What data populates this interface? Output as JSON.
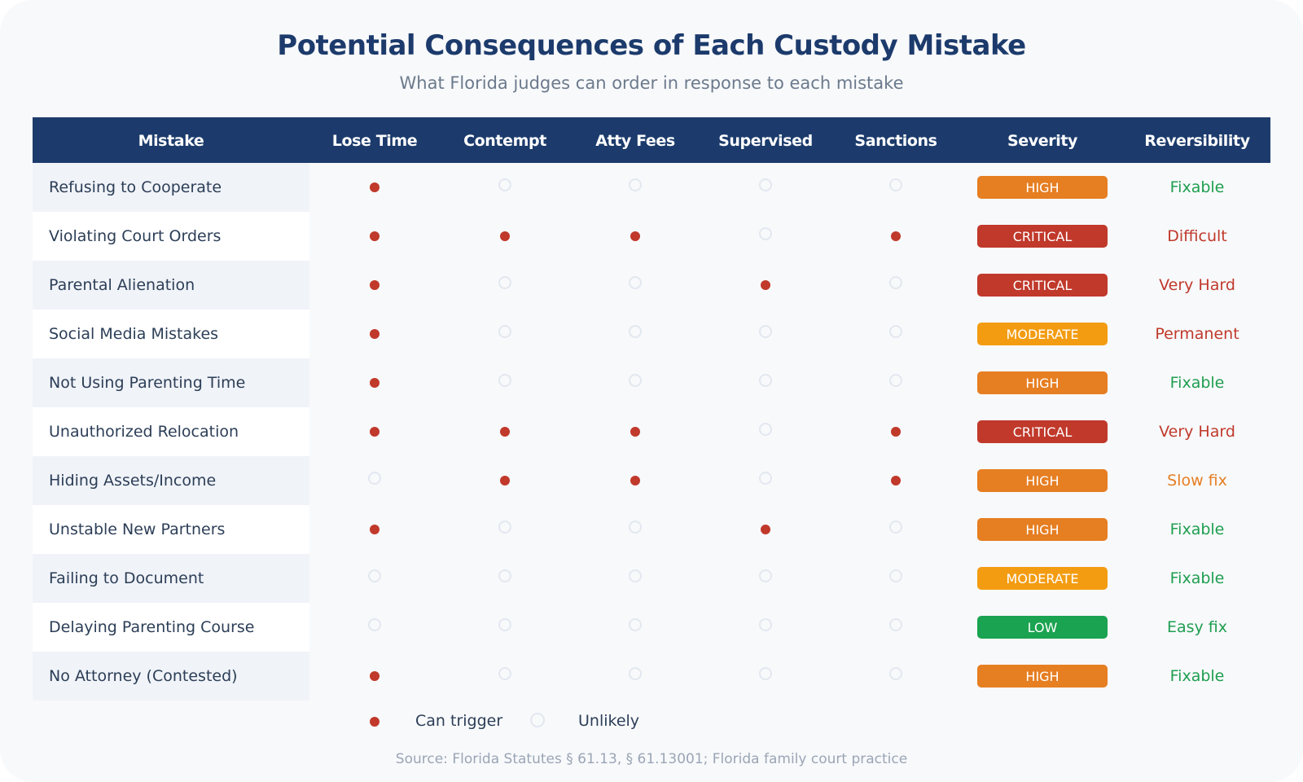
{
  "header": {
    "title": "Potential Consequences of Each Custody Mistake",
    "subtitle": "What Florida judges can order in response to each mistake"
  },
  "columns": [
    "Mistake",
    "Lose Time",
    "Contempt",
    "Atty Fees",
    "Supervised",
    "Sanctions",
    "Severity",
    "Reversibility"
  ],
  "severity_colors": {
    "CRITICAL": "#c0392b",
    "HIGH": "#e67e22",
    "MODERATE": "#f39c12",
    "LOW": "#1aa350"
  },
  "reversibility_colors": {
    "Fixable": "#1e9e50",
    "Easy fix": "#1e9e50",
    "Slow fix": "#e67e22",
    "Difficult": "#c0392b",
    "Very Hard": "#c0392b",
    "Permanent": "#c0392b"
  },
  "rows": [
    {
      "mistake": "Refusing to Cooperate",
      "flags": [
        1,
        0,
        0,
        0,
        0
      ],
      "severity": "HIGH",
      "reversibility": "Fixable"
    },
    {
      "mistake": "Violating Court Orders",
      "flags": [
        1,
        1,
        1,
        0,
        1
      ],
      "severity": "CRITICAL",
      "reversibility": "Difficult"
    },
    {
      "mistake": "Parental Alienation",
      "flags": [
        1,
        0,
        0,
        1,
        0
      ],
      "severity": "CRITICAL",
      "reversibility": "Very Hard"
    },
    {
      "mistake": "Social Media Mistakes",
      "flags": [
        1,
        0,
        0,
        0,
        0
      ],
      "severity": "MODERATE",
      "reversibility": "Permanent"
    },
    {
      "mistake": "Not Using Parenting Time",
      "flags": [
        1,
        0,
        0,
        0,
        0
      ],
      "severity": "HIGH",
      "reversibility": "Fixable"
    },
    {
      "mistake": "Unauthorized Relocation",
      "flags": [
        1,
        1,
        1,
        0,
        1
      ],
      "severity": "CRITICAL",
      "reversibility": "Very Hard"
    },
    {
      "mistake": "Hiding Assets/Income",
      "flags": [
        0,
        1,
        1,
        0,
        1
      ],
      "severity": "HIGH",
      "reversibility": "Slow fix"
    },
    {
      "mistake": "Unstable New Partners",
      "flags": [
        1,
        0,
        0,
        1,
        0
      ],
      "severity": "HIGH",
      "reversibility": "Fixable"
    },
    {
      "mistake": "Failing to Document",
      "flags": [
        0,
        0,
        0,
        0,
        0
      ],
      "severity": "MODERATE",
      "reversibility": "Fixable"
    },
    {
      "mistake": "Delaying Parenting Course",
      "flags": [
        0,
        0,
        0,
        0,
        0
      ],
      "severity": "LOW",
      "reversibility": "Easy fix"
    },
    {
      "mistake": "No Attorney (Contested)",
      "flags": [
        1,
        0,
        0,
        0,
        0
      ],
      "severity": "HIGH",
      "reversibility": "Fixable"
    }
  ],
  "legend": {
    "on_label": "Can trigger",
    "off_label": "Unlikely"
  },
  "footer": {
    "source": "Source: Florida Statutes § 61.13, § 61.13001; Florida family court practice"
  },
  "chart_data": {
    "type": "table",
    "title": "Potential Consequences of Each Custody Mistake",
    "subtitle": "What Florida judges can order in response to each mistake",
    "columns": [
      "Mistake",
      "Lose Time",
      "Contempt",
      "Atty Fees",
      "Supervised",
      "Sanctions",
      "Severity",
      "Reversibility"
    ],
    "rows": [
      [
        "Refusing to Cooperate",
        true,
        false,
        false,
        false,
        false,
        "HIGH",
        "Fixable"
      ],
      [
        "Violating Court Orders",
        true,
        true,
        true,
        false,
        true,
        "CRITICAL",
        "Difficult"
      ],
      [
        "Parental Alienation",
        true,
        false,
        false,
        true,
        false,
        "CRITICAL",
        "Very Hard"
      ],
      [
        "Social Media Mistakes",
        true,
        false,
        false,
        false,
        false,
        "MODERATE",
        "Permanent"
      ],
      [
        "Not Using Parenting Time",
        true,
        false,
        false,
        false,
        false,
        "HIGH",
        "Fixable"
      ],
      [
        "Unauthorized Relocation",
        true,
        true,
        true,
        false,
        true,
        "CRITICAL",
        "Very Hard"
      ],
      [
        "Hiding Assets/Income",
        false,
        true,
        true,
        false,
        true,
        "HIGH",
        "Slow fix"
      ],
      [
        "Unstable New Partners",
        true,
        false,
        false,
        true,
        false,
        "HIGH",
        "Fixable"
      ],
      [
        "Failing to Document",
        false,
        false,
        false,
        false,
        false,
        "MODERATE",
        "Fixable"
      ],
      [
        "Delaying Parenting Course",
        false,
        false,
        false,
        false,
        false,
        "LOW",
        "Easy fix"
      ],
      [
        "No Attorney (Contested)",
        true,
        false,
        false,
        false,
        false,
        "HIGH",
        "Fixable"
      ]
    ],
    "legend": [
      "Can trigger (filled red dot)",
      "Unlikely (empty ring)"
    ],
    "annotations": [
      "Source: Florida Statutes § 61.13, § 61.13001; Florida family court practice"
    ]
  }
}
